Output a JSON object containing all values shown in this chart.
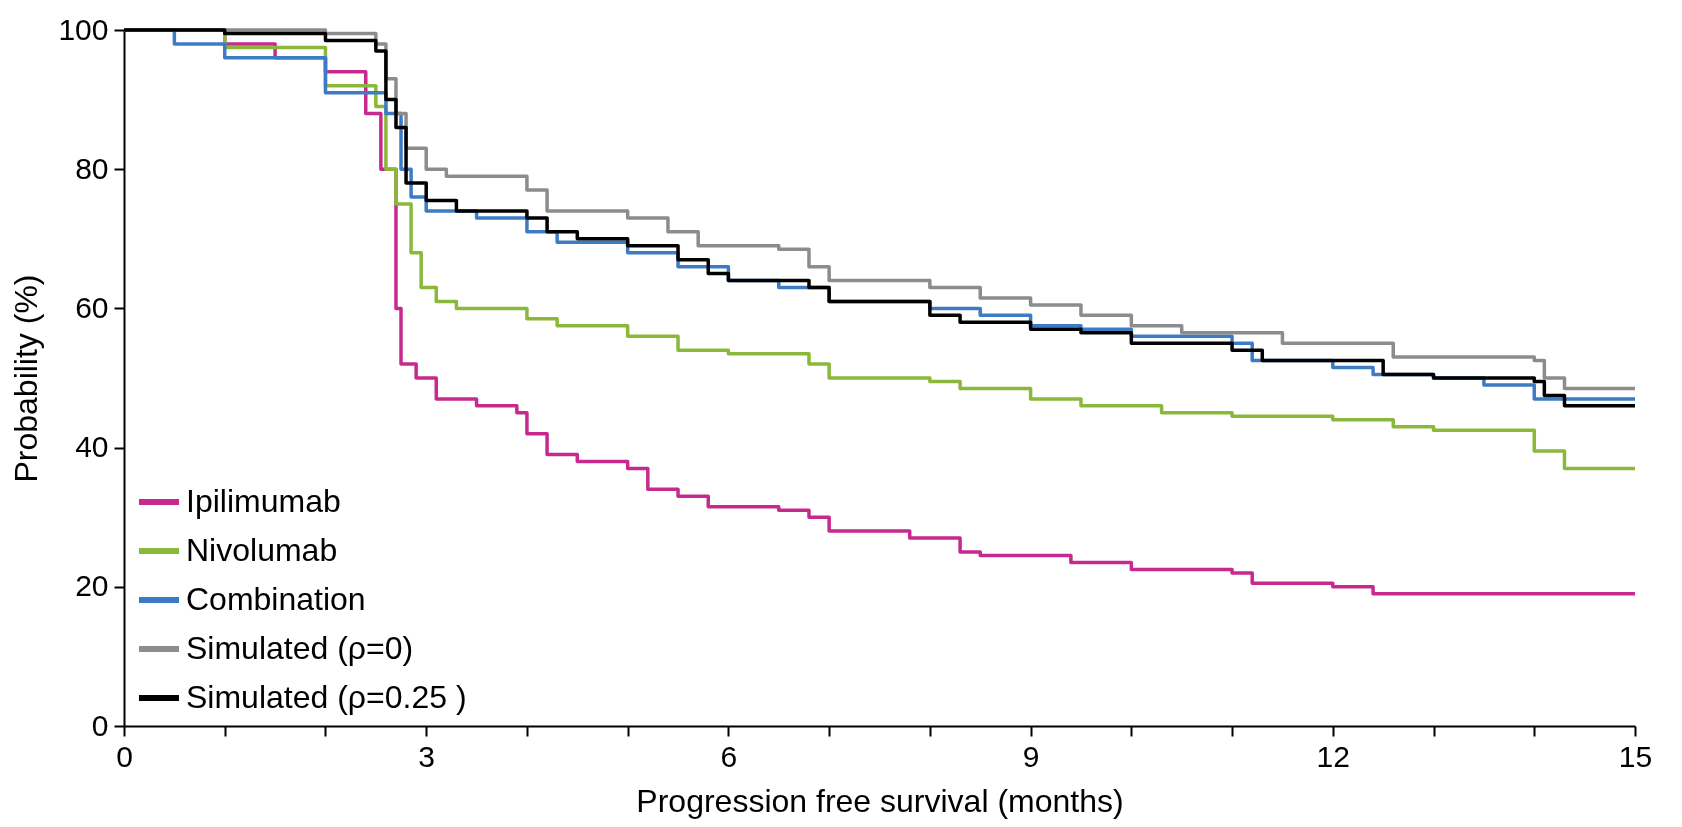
{
  "chart_data": {
    "type": "step",
    "xlabel": "Progression free survival (months)",
    "ylabel": "Probability (%)",
    "xlim": [
      0,
      15
    ],
    "ylim": [
      0,
      100
    ],
    "xticks": [
      0,
      {
        "value": 1,
        "label": null
      },
      {
        "value": 2,
        "label": null
      },
      3,
      {
        "value": 4,
        "label": null
      },
      {
        "value": 5,
        "label": null
      },
      6,
      {
        "value": 7,
        "label": null
      },
      {
        "value": 8,
        "label": null
      },
      9,
      {
        "value": 10,
        "label": null
      },
      {
        "value": 11,
        "label": null
      },
      12,
      {
        "value": 13,
        "label": null
      },
      {
        "value": 14,
        "label": null
      },
      15
    ],
    "yticks": [
      0,
      20,
      40,
      60,
      80,
      100
    ],
    "grid": false,
    "legend": "bottom left",
    "marker": "none",
    "line_style": "solid",
    "series": [
      {
        "name": "Ipilimumab",
        "color": "#c72a8e",
        "x": [
          0,
          1,
          1.5,
          2,
          2.4,
          2.55,
          2.7,
          2.75,
          2.9,
          3.1,
          3.5,
          3.9,
          4.0,
          4.2,
          4.5,
          5.0,
          5.2,
          5.5,
          5.8,
          6.5,
          6.8,
          7.0,
          7.8,
          8.3,
          8.5,
          9.4,
          10,
          11,
          11.2,
          12,
          12.4,
          15
        ],
        "values": [
          100,
          98,
          96,
          94,
          88,
          80,
          60,
          52,
          50,
          47,
          46,
          45,
          42,
          39,
          38,
          37,
          34,
          33,
          31.5,
          31,
          30,
          28,
          27,
          25,
          24.5,
          23.5,
          22.5,
          22,
          20.5,
          20,
          19,
          19
        ]
      },
      {
        "name": "Nivolumab",
        "color": "#8ab83a",
        "x": [
          0,
          1,
          2,
          2.5,
          2.6,
          2.7,
          2.85,
          2.95,
          3.1,
          3.3,
          4.0,
          4.3,
          5.0,
          5.5,
          6.0,
          6.8,
          7.0,
          8.0,
          8.3,
          9.0,
          9.5,
          10.3,
          11.0,
          12.0,
          12.6,
          13.0,
          14.0,
          14.3,
          15
        ],
        "values": [
          100,
          97.5,
          92,
          89,
          80,
          75,
          68,
          63,
          61,
          60,
          58.5,
          57.5,
          56,
          54,
          53.5,
          52,
          50,
          49.5,
          48.5,
          47,
          46,
          45,
          44.5,
          44,
          43,
          42.5,
          39.5,
          37,
          37
        ]
      },
      {
        "name": "Combination",
        "color": "#3d7cc4",
        "x": [
          0,
          0.5,
          1,
          2,
          2.6,
          2.75,
          2.85,
          3.0,
          3.5,
          4.0,
          4.3,
          5.0,
          5.5,
          6.0,
          6.5,
          7.0,
          8.0,
          8.5,
          9.0,
          9.5,
          10,
          11,
          11.2,
          12,
          12.4,
          13,
          13.5,
          14.0,
          15
        ],
        "values": [
          100,
          98,
          96,
          91,
          88,
          80,
          76,
          74,
          73,
          71,
          69.5,
          68,
          66,
          64,
          63,
          61,
          60,
          59,
          57.5,
          57,
          56,
          55,
          52.5,
          51.5,
          50.5,
          50,
          49,
          47,
          47
        ]
      },
      {
        "name": "Simulated (ρ=0)",
        "color": "#8c8c8c",
        "x": [
          0,
          1,
          2,
          2.5,
          2.6,
          2.7,
          2.8,
          3.0,
          3.2,
          4.0,
          4.2,
          5.0,
          5.4,
          5.7,
          6.5,
          6.8,
          7.0,
          8.0,
          8.5,
          9.0,
          9.5,
          10,
          10.5,
          11.5,
          12.6,
          14,
          14.1,
          14.3,
          15
        ],
        "values": [
          100,
          100,
          99.5,
          98,
          93,
          88,
          83,
          80,
          79,
          77,
          74,
          73,
          71,
          69,
          68.5,
          66,
          64,
          63,
          61.5,
          60.5,
          59,
          57.5,
          56.5,
          55,
          53,
          52.5,
          50,
          48.5,
          48.5
        ]
      },
      {
        "name": "Simulated (ρ=0.25 )",
        "color": "#000000",
        "x": [
          0,
          1,
          2,
          2.5,
          2.6,
          2.7,
          2.8,
          3.0,
          3.3,
          4.0,
          4.2,
          4.5,
          5.0,
          5.5,
          5.8,
          6.0,
          6.8,
          7.0,
          8.0,
          8.3,
          9.0,
          9.5,
          10,
          11,
          11.3,
          12.5,
          13,
          14,
          14.1,
          14.3,
          15
        ],
        "values": [
          100,
          99.5,
          98.5,
          97,
          90,
          86,
          78,
          75.5,
          74,
          73,
          71,
          70,
          69,
          67,
          65,
          64,
          63,
          61,
          59,
          58,
          57,
          56.5,
          55,
          54,
          52.5,
          50.5,
          50,
          49.5,
          47.5,
          46,
          46
        ]
      }
    ]
  }
}
